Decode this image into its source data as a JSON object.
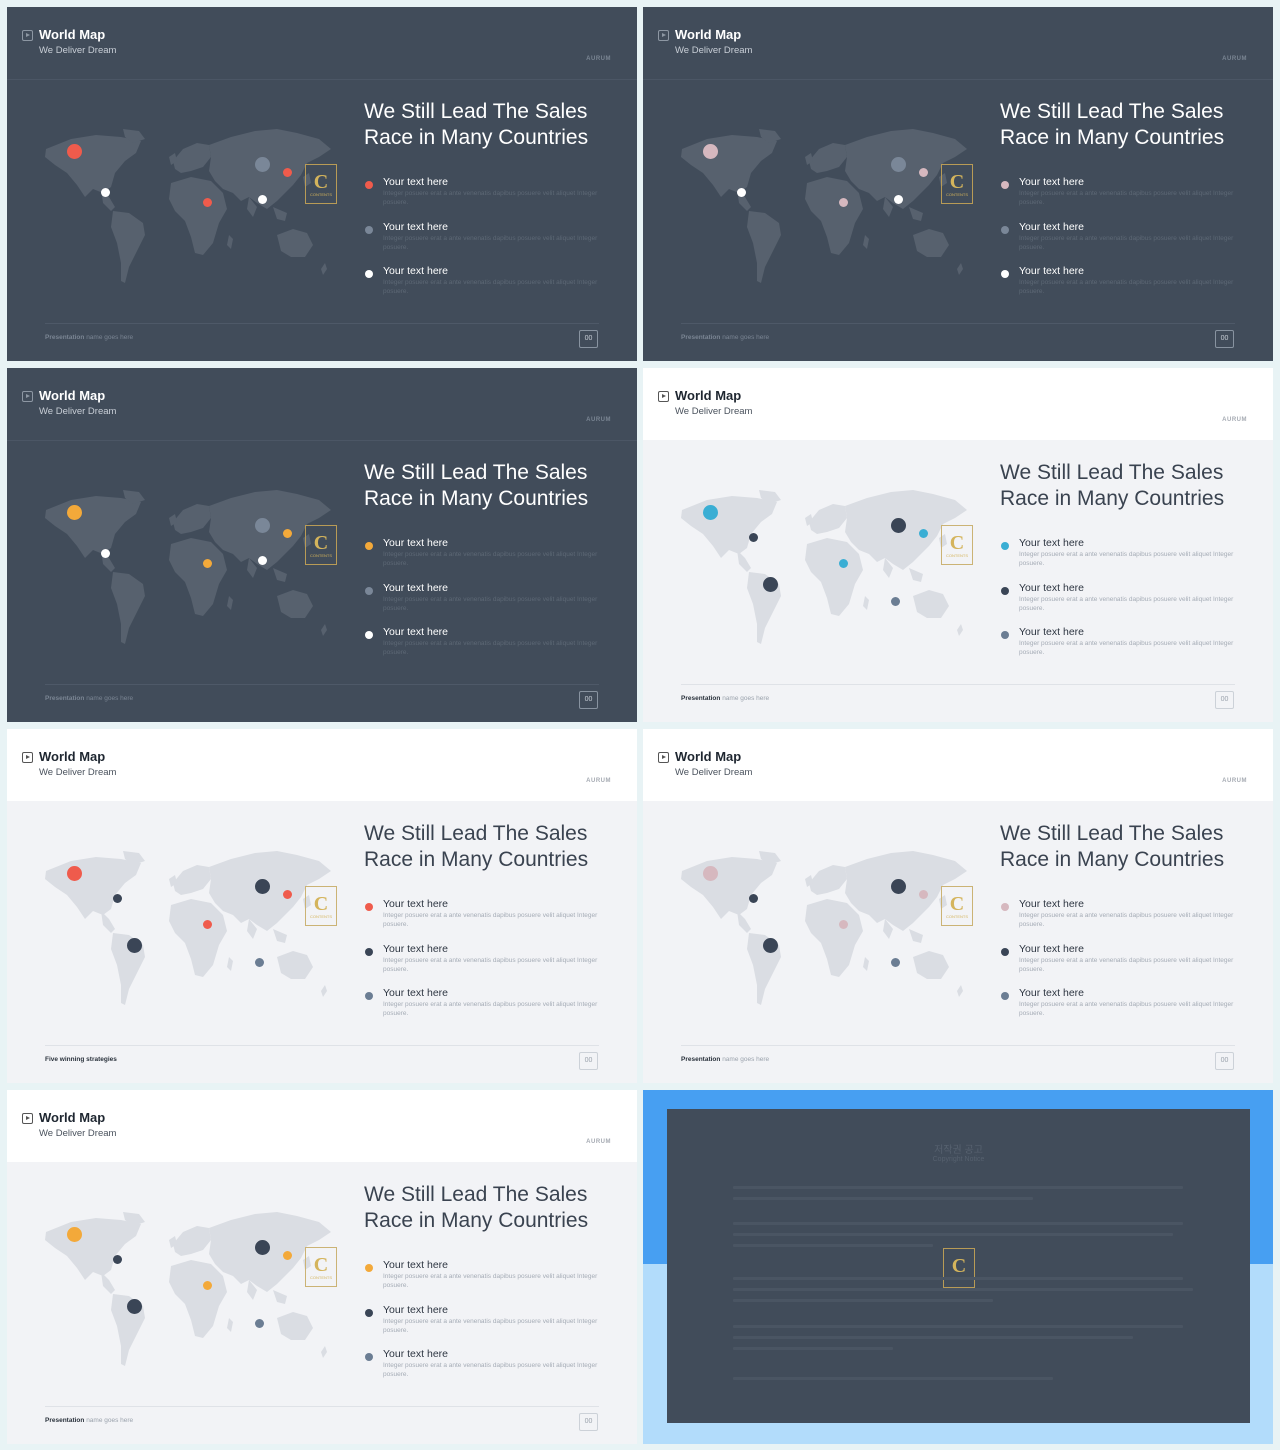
{
  "common": {
    "title": "World Map",
    "subtitle": "We Deliver Dream",
    "brand": "AURUM",
    "heading_line1": "We Still Lead The Sales",
    "heading_line2": "Race in Many Countries",
    "item_label": "Your text here",
    "item_desc": "Integer posuere erat a ante venenatis dapibus posuere velit aliquet Integer posuere.",
    "footer_bold": "Presentation",
    "footer_rest": "name goes here",
    "page_num": "00",
    "logo_letter": "C",
    "logo_text": "CONTENTS"
  },
  "slides": [
    {
      "theme": "dark",
      "accent": "#ef5b4c",
      "mid": "#7a8798",
      "light": "#ffffff",
      "footer_bold": "Presentation",
      "footer_rest": "name goes here"
    },
    {
      "theme": "dark",
      "accent": "#d6b8bf",
      "mid": "#7a8798",
      "light": "#ffffff",
      "footer_bold": "Presentation",
      "footer_rest": "name goes here"
    },
    {
      "theme": "dark",
      "accent": "#f3a93a",
      "mid": "#7a8798",
      "light": "#ffffff",
      "footer_bold": "Presentation",
      "footer_rest": "name goes here"
    },
    {
      "theme": "light",
      "accent": "#3aaed4",
      "mid": "#3a4556",
      "light": "#6b7d93",
      "footer_bold": "Presentation",
      "footer_rest": "name goes here"
    },
    {
      "theme": "light",
      "accent": "#ef5b4c",
      "mid": "#3a4556",
      "light": "#6b7d93",
      "footer_bold": "Five winning strategies",
      "footer_rest": ""
    },
    {
      "theme": "light",
      "accent": "#d6b8bf",
      "mid": "#3a4556",
      "light": "#6b7d93",
      "footer_bold": "Presentation",
      "footer_rest": "name goes here"
    },
    {
      "theme": "light",
      "accent": "#f3a93a",
      "mid": "#3a4556",
      "light": "#6b7d93",
      "footer_bold": "Presentation",
      "footer_rest": "name goes here"
    }
  ],
  "copyright": {
    "title": "저작권 공고",
    "subtitle": "Copyright Notice"
  }
}
